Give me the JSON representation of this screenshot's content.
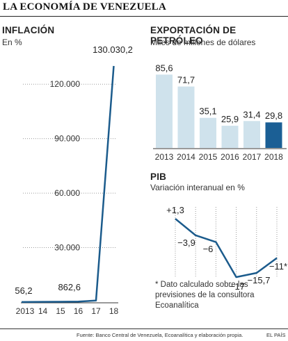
{
  "page_title": "LA ECONOMÍA DE VENEZUELA",
  "chart_data": [
    {
      "type": "line",
      "title": "INFLACIÓN",
      "subtitle": "En %",
      "x": [
        "2013",
        "14",
        "15",
        "16",
        "17",
        "18"
      ],
      "values": [
        56.2,
        121.7,
        180.9,
        274.4,
        862.6,
        130030.2
      ],
      "data_labels": [
        "56,2",
        "",
        "",
        "",
        "862,6",
        "130.030,2"
      ],
      "yticks": [
        "30.000",
        "60.000",
        "90.000",
        "120.000"
      ],
      "ytick_values": [
        30000,
        60000,
        90000,
        120000
      ],
      "ylim": [
        0,
        135000
      ],
      "grid": "y-dotted",
      "color": "#1b5b8c"
    },
    {
      "type": "bar",
      "title": "EXPORTACIÓN DE PETRÓLEO",
      "subtitle": "Miles de millones de dólares",
      "categories": [
        "2013",
        "2014",
        "2015",
        "2016",
        "2017",
        "2018"
      ],
      "values": [
        85.6,
        71.7,
        35.1,
        25.9,
        31.4,
        29.8
      ],
      "value_labels": [
        "85,6",
        "71,7",
        "35,1",
        "25,9",
        "31,4",
        "29,8"
      ],
      "ylim": [
        0,
        90
      ],
      "colors": [
        "#cfe2ec",
        "#cfe2ec",
        "#cfe2ec",
        "#cfe2ec",
        "#cfe2ec",
        "#1b5f95"
      ]
    },
    {
      "type": "line",
      "title": "PIB",
      "subtitle": "Variación interanual en %",
      "x": [
        "2013",
        "2014",
        "2015",
        "2016",
        "2017",
        "2018"
      ],
      "values": [
        1.3,
        -3.9,
        -6,
        -17,
        -15.7,
        -11
      ],
      "value_labels": [
        "+1,3",
        "−3,9",
        "−6",
        "−17",
        "−15,7",
        "−11*"
      ],
      "ylim": [
        -18,
        2
      ],
      "grid": "x-dotted",
      "color": "#1b5b8c"
    }
  ],
  "note": "* Dato calculado sobre las previsiones de la consultora Ecoanalítica",
  "source": "Fuente: Banco Central de Venezuela, Ecoanalítica y elaboración propia.",
  "brand": "EL PAÍS"
}
